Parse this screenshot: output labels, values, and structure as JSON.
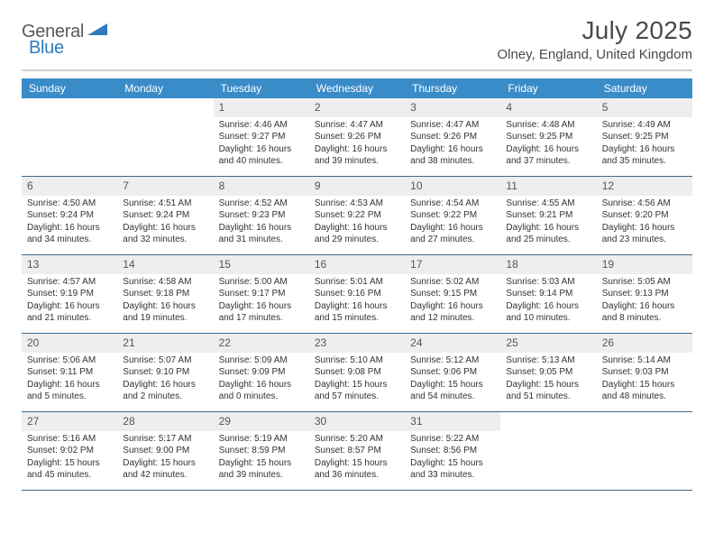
{
  "logo": {
    "text1": "General",
    "text2": "Blue"
  },
  "header": {
    "month": "July 2025",
    "location": "Olney, England, United Kingdom"
  },
  "colors": {
    "header_bg": "#3a8cc9",
    "week_border": "#3a6a8f",
    "daynum_bg": "#eeeeee",
    "text": "#333333"
  },
  "weekdays": [
    "Sunday",
    "Monday",
    "Tuesday",
    "Wednesday",
    "Thursday",
    "Friday",
    "Saturday"
  ],
  "weeks": [
    [
      {
        "empty": true
      },
      {
        "empty": true
      },
      {
        "day": "1",
        "sunrise": "4:46 AM",
        "sunset": "9:27 PM",
        "daylight": "16 hours and 40 minutes."
      },
      {
        "day": "2",
        "sunrise": "4:47 AM",
        "sunset": "9:26 PM",
        "daylight": "16 hours and 39 minutes."
      },
      {
        "day": "3",
        "sunrise": "4:47 AM",
        "sunset": "9:26 PM",
        "daylight": "16 hours and 38 minutes."
      },
      {
        "day": "4",
        "sunrise": "4:48 AM",
        "sunset": "9:25 PM",
        "daylight": "16 hours and 37 minutes."
      },
      {
        "day": "5",
        "sunrise": "4:49 AM",
        "sunset": "9:25 PM",
        "daylight": "16 hours and 35 minutes."
      }
    ],
    [
      {
        "day": "6",
        "sunrise": "4:50 AM",
        "sunset": "9:24 PM",
        "daylight": "16 hours and 34 minutes."
      },
      {
        "day": "7",
        "sunrise": "4:51 AM",
        "sunset": "9:24 PM",
        "daylight": "16 hours and 32 minutes."
      },
      {
        "day": "8",
        "sunrise": "4:52 AM",
        "sunset": "9:23 PM",
        "daylight": "16 hours and 31 minutes."
      },
      {
        "day": "9",
        "sunrise": "4:53 AM",
        "sunset": "9:22 PM",
        "daylight": "16 hours and 29 minutes."
      },
      {
        "day": "10",
        "sunrise": "4:54 AM",
        "sunset": "9:22 PM",
        "daylight": "16 hours and 27 minutes."
      },
      {
        "day": "11",
        "sunrise": "4:55 AM",
        "sunset": "9:21 PM",
        "daylight": "16 hours and 25 minutes."
      },
      {
        "day": "12",
        "sunrise": "4:56 AM",
        "sunset": "9:20 PM",
        "daylight": "16 hours and 23 minutes."
      }
    ],
    [
      {
        "day": "13",
        "sunrise": "4:57 AM",
        "sunset": "9:19 PM",
        "daylight": "16 hours and 21 minutes."
      },
      {
        "day": "14",
        "sunrise": "4:58 AM",
        "sunset": "9:18 PM",
        "daylight": "16 hours and 19 minutes."
      },
      {
        "day": "15",
        "sunrise": "5:00 AM",
        "sunset": "9:17 PM",
        "daylight": "16 hours and 17 minutes."
      },
      {
        "day": "16",
        "sunrise": "5:01 AM",
        "sunset": "9:16 PM",
        "daylight": "16 hours and 15 minutes."
      },
      {
        "day": "17",
        "sunrise": "5:02 AM",
        "sunset": "9:15 PM",
        "daylight": "16 hours and 12 minutes."
      },
      {
        "day": "18",
        "sunrise": "5:03 AM",
        "sunset": "9:14 PM",
        "daylight": "16 hours and 10 minutes."
      },
      {
        "day": "19",
        "sunrise": "5:05 AM",
        "sunset": "9:13 PM",
        "daylight": "16 hours and 8 minutes."
      }
    ],
    [
      {
        "day": "20",
        "sunrise": "5:06 AM",
        "sunset": "9:11 PM",
        "daylight": "16 hours and 5 minutes."
      },
      {
        "day": "21",
        "sunrise": "5:07 AM",
        "sunset": "9:10 PM",
        "daylight": "16 hours and 2 minutes."
      },
      {
        "day": "22",
        "sunrise": "5:09 AM",
        "sunset": "9:09 PM",
        "daylight": "16 hours and 0 minutes."
      },
      {
        "day": "23",
        "sunrise": "5:10 AM",
        "sunset": "9:08 PM",
        "daylight": "15 hours and 57 minutes."
      },
      {
        "day": "24",
        "sunrise": "5:12 AM",
        "sunset": "9:06 PM",
        "daylight": "15 hours and 54 minutes."
      },
      {
        "day": "25",
        "sunrise": "5:13 AM",
        "sunset": "9:05 PM",
        "daylight": "15 hours and 51 minutes."
      },
      {
        "day": "26",
        "sunrise": "5:14 AM",
        "sunset": "9:03 PM",
        "daylight": "15 hours and 48 minutes."
      }
    ],
    [
      {
        "day": "27",
        "sunrise": "5:16 AM",
        "sunset": "9:02 PM",
        "daylight": "15 hours and 45 minutes."
      },
      {
        "day": "28",
        "sunrise": "5:17 AM",
        "sunset": "9:00 PM",
        "daylight": "15 hours and 42 minutes."
      },
      {
        "day": "29",
        "sunrise": "5:19 AM",
        "sunset": "8:59 PM",
        "daylight": "15 hours and 39 minutes."
      },
      {
        "day": "30",
        "sunrise": "5:20 AM",
        "sunset": "8:57 PM",
        "daylight": "15 hours and 36 minutes."
      },
      {
        "day": "31",
        "sunrise": "5:22 AM",
        "sunset": "8:56 PM",
        "daylight": "15 hours and 33 minutes."
      },
      {
        "empty": true
      },
      {
        "empty": true
      }
    ]
  ],
  "labels": {
    "sunrise": "Sunrise:",
    "sunset": "Sunset:",
    "daylight": "Daylight:"
  }
}
